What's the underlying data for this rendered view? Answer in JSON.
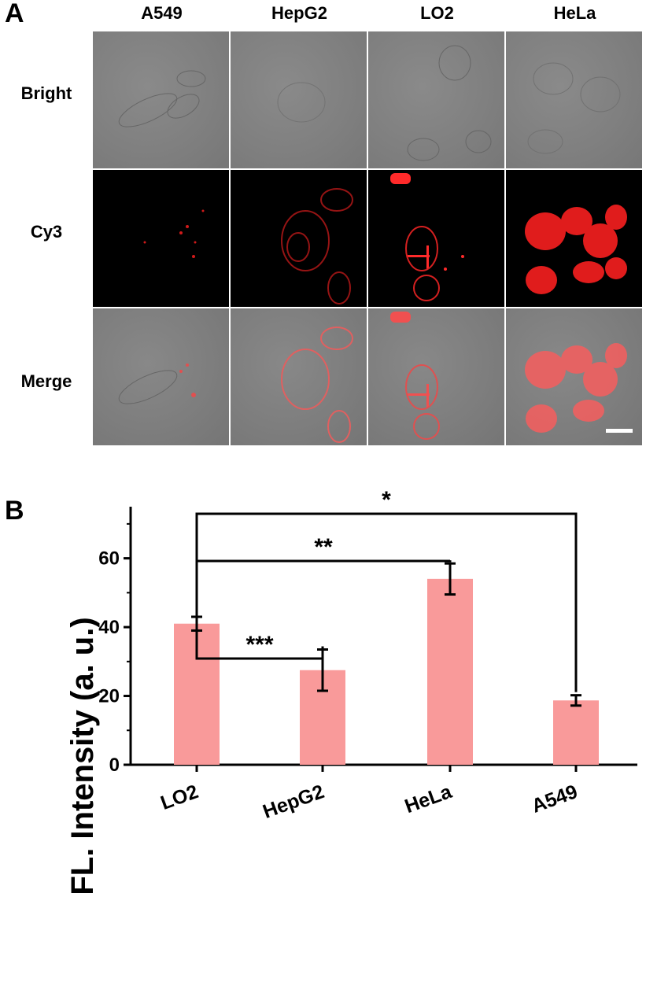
{
  "panel_a": {
    "letter": "A",
    "columns": [
      "A549",
      "HepG2",
      "LO2",
      "HeLa"
    ],
    "rows": [
      "Bright",
      "Cy3",
      "Merge"
    ]
  },
  "panel_b": {
    "letter": "B"
  },
  "colors": {
    "bar": "#f99a9a",
    "cy3_signal": "#ff2020",
    "bright_bg": "#808080"
  },
  "chart_data": {
    "type": "bar",
    "categories": [
      "LO2",
      "HepG2",
      "HeLa",
      "A549"
    ],
    "values": [
      41,
      27.5,
      54,
      18.7
    ],
    "errors": [
      2,
      6,
      4.5,
      1.5
    ],
    "ylabel": "FL. Intensity  (a. u.)",
    "xlabel": "",
    "ylim": [
      0,
      75
    ],
    "yticks": [
      0,
      20,
      40,
      60
    ],
    "grid": false,
    "significance": [
      {
        "from": "LO2",
        "to": "HepG2",
        "label": "***"
      },
      {
        "from": "LO2",
        "to": "HeLa",
        "label": "**"
      },
      {
        "from": "LO2",
        "to": "A549",
        "label": "*"
      }
    ]
  }
}
